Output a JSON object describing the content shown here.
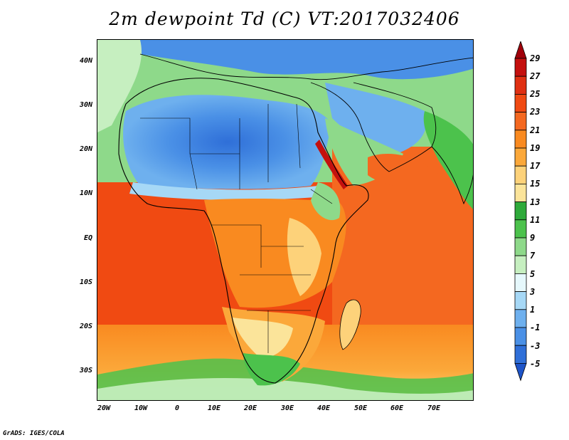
{
  "title": "2m dewpoint Td (C) VT:2017032406",
  "credit": "GrADS: IGES/COLA",
  "map": {
    "variable": "2m dewpoint",
    "units": "C",
    "valid_time": "2017032406",
    "lon_range": [
      -23,
      80
    ],
    "lat_range": [
      -36,
      46
    ]
  },
  "axes": {
    "x_ticks": [
      {
        "label": "20W",
        "lon": -20
      },
      {
        "label": "10W",
        "lon": -10
      },
      {
        "label": "0",
        "lon": 0
      },
      {
        "label": "10E",
        "lon": 10
      },
      {
        "label": "20E",
        "lon": 20
      },
      {
        "label": "30E",
        "lon": 30
      },
      {
        "label": "40E",
        "lon": 40
      },
      {
        "label": "50E",
        "lon": 50
      },
      {
        "label": "60E",
        "lon": 60
      },
      {
        "label": "70E",
        "lon": 70
      }
    ],
    "y_ticks": [
      {
        "label": "40N",
        "lat": 40
      },
      {
        "label": "30N",
        "lat": 30
      },
      {
        "label": "20N",
        "lat": 20
      },
      {
        "label": "10N",
        "lat": 10
      },
      {
        "label": "EQ",
        "lat": 0
      },
      {
        "label": "10S",
        "lat": -10
      },
      {
        "label": "20S",
        "lat": -20
      },
      {
        "label": "30S",
        "lat": -30
      }
    ]
  },
  "colorbar": {
    "levels": [
      "29",
      "27",
      "25",
      "23",
      "21",
      "19",
      "17",
      "15",
      "13",
      "11",
      "9",
      "7",
      "5",
      "3",
      "1",
      "-1",
      "-3",
      "-5"
    ],
    "colors": [
      "#a0000a",
      "#c4100e",
      "#e03012",
      "#f04a12",
      "#f46820",
      "#f98a20",
      "#fba83a",
      "#fdd27a",
      "#fbe49a",
      "#2eaa3a",
      "#4cc24c",
      "#8ed98a",
      "#c6efc0",
      "#e6f8fc",
      "#a6d8f6",
      "#6eb0ee",
      "#4a90e6",
      "#2f6fd8",
      "#1e54c8"
    ]
  }
}
